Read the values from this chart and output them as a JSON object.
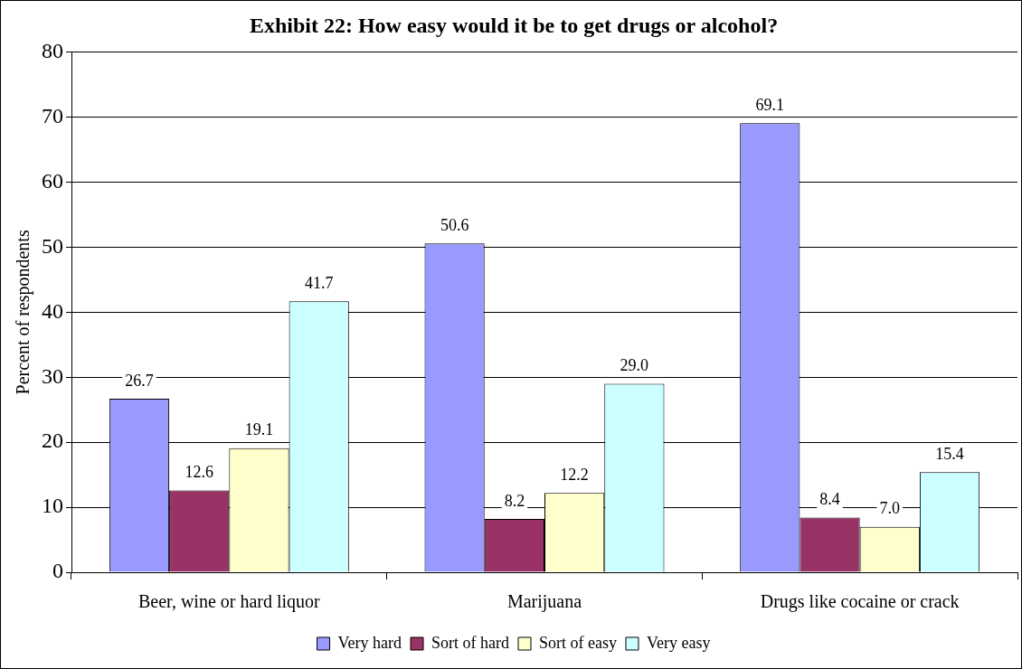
{
  "chart_data": {
    "type": "bar",
    "title": "Exhibit 22: How easy would it be to get drugs or alcohol?",
    "ylabel": "Percent of respondents",
    "categories": [
      "Beer, wine or hard liquor",
      "Marijuana",
      "Drugs like cocaine or crack"
    ],
    "series": [
      {
        "name": "Very hard",
        "color": "#9999ff",
        "values": [
          26.7,
          50.6,
          69.1
        ],
        "value_labels": [
          "26.7",
          "50.6",
          "69.1"
        ]
      },
      {
        "name": "Sort of hard",
        "color": "#993366",
        "values": [
          12.6,
          8.2,
          8.4
        ],
        "value_labels": [
          "12.6",
          "8.2",
          "8.4"
        ]
      },
      {
        "name": "Sort of easy",
        "color": "#ffffcc",
        "values": [
          19.1,
          12.2,
          7.0
        ],
        "value_labels": [
          "19.1",
          "12.2",
          "7.0"
        ]
      },
      {
        "name": "Very easy",
        "color": "#ccffff",
        "values": [
          41.7,
          29.0,
          15.4
        ],
        "value_labels": [
          "41.7",
          "29.0",
          "15.4"
        ]
      }
    ],
    "ylim": [
      0,
      80
    ],
    "yticks": [
      0,
      10,
      20,
      30,
      40,
      50,
      60,
      70,
      80
    ],
    "grid": "y",
    "legend": "bottom"
  }
}
